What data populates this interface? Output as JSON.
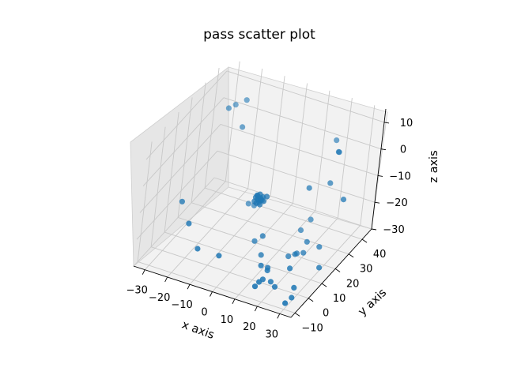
{
  "chart_data": {
    "type": "scatter",
    "title": "pass scatter plot",
    "xlabel": "x axis",
    "ylabel": "y axis",
    "zlabel": "z axis",
    "xlim": [
      -35,
      35
    ],
    "ylim": [
      -13,
      47
    ],
    "zlim": [
      -30,
      15
    ],
    "xticks": [
      "−30",
      "−20",
      "−10",
      "0",
      "10",
      "20",
      "30"
    ],
    "yticks": [
      "−10",
      "0",
      "10",
      "20",
      "30",
      "40"
    ],
    "zticks": [
      "−30",
      "−20",
      "−10",
      "0",
      "10"
    ],
    "grid": true,
    "color": "#1f77b4",
    "points": [
      [
        -1.2,
        18.0,
        -11.3
      ],
      [
        -0.3,
        18.6,
        -11.0
      ],
      [
        0.5,
        18.1,
        -12.6
      ],
      [
        -1.8,
        17.4,
        -13.4
      ],
      [
        0.9,
        19.0,
        -11.9
      ],
      [
        -0.8,
        17.2,
        -13.7
      ],
      [
        0.2,
        18.4,
        -13.0
      ],
      [
        -1.5,
        19.2,
        -12.2
      ],
      [
        1.2,
        17.8,
        -12.4
      ],
      [
        -0.5,
        18.9,
        -14.2
      ],
      [
        0.6,
        17.5,
        -14.0
      ],
      [
        -1.0,
        18.3,
        -12.8
      ],
      [
        -2.0,
        18.6,
        -12.6
      ],
      [
        0.0,
        17.0,
        -12.1
      ],
      [
        1.5,
        18.8,
        -13.2
      ],
      [
        -0.2,
        19.4,
        -12.9
      ],
      [
        -27.8,
        38.0,
        3.0
      ],
      [
        -26.5,
        41.0,
        3.0
      ],
      [
        -20.5,
        37.0,
        -1.5
      ],
      [
        -22.0,
        41.0,
        6.0
      ],
      [
        -32.0,
        16.0,
        -21.0
      ],
      [
        -25.0,
        10.0,
        -24.0
      ],
      [
        -9.0,
        32.0,
        -25.0
      ],
      [
        -11.5,
        32.0,
        -25.0
      ],
      [
        -18.5,
        7.0,
        -30.0
      ],
      [
        -9.0,
        7.0,
        -30.0
      ],
      [
        3.5,
        17.5,
        -25.0
      ],
      [
        -1.0,
        20.0,
        -29.5
      ],
      [
        4.5,
        16.0,
        -31.0
      ],
      [
        2.0,
        20.0,
        -12.0
      ],
      [
        17.5,
        24.5,
        -7.0
      ],
      [
        21.0,
        36.0,
        5.5
      ],
      [
        26.0,
        29.5,
        6.0
      ],
      [
        25.0,
        31.0,
        5.0
      ],
      [
        25.0,
        27.0,
        -4.5
      ],
      [
        35.0,
        20.0,
        -4.0
      ],
      [
        17.0,
        30.0,
        -22.0
      ],
      [
        14.0,
        28.5,
        -26.0
      ],
      [
        20.5,
        22.0,
        -25.0
      ],
      [
        27.0,
        20.0,
        -24.0
      ],
      [
        32.0,
        12.0,
        -26.0
      ],
      [
        20.5,
        20.0,
        -28.0
      ],
      [
        17.0,
        21.5,
        -30.0
      ],
      [
        17.0,
        20.0,
        -29.5
      ],
      [
        15.0,
        18.5,
        -30.0
      ],
      [
        11.5,
        9.0,
        -30.0
      ],
      [
        8.5,
        9.0,
        -30.0
      ],
      [
        14.0,
        8.0,
        -34.0
      ],
      [
        26.0,
        4.5,
        -31.0
      ],
      [
        26.5,
        2.5,
        -33.5
      ],
      [
        26.0,
        -1.5,
        -33.5
      ],
      [
        17.0,
        6.0,
        -34.0
      ],
      [
        11.5,
        3.0,
        -32.0
      ],
      [
        11.5,
        0.0,
        -32.0
      ],
      [
        20.0,
        11.0,
        -29.0
      ],
      [
        12.0,
        5.0,
        -32.0
      ],
      [
        11.5,
        9.0,
        -31.0
      ]
    ]
  }
}
